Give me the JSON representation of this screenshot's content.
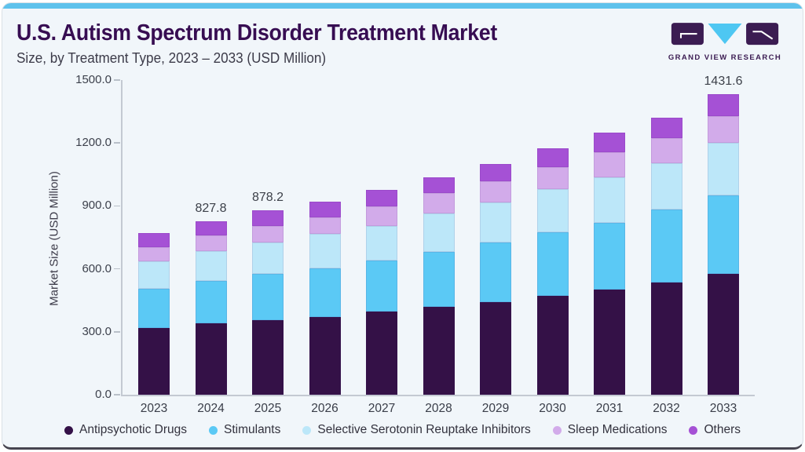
{
  "header": {
    "title": "U.S. Autism Spectrum Disorder Treatment Market",
    "subtitle": "Size, by Treatment Type, 2023 – 2033 (USD Million)",
    "logo_text": "GRAND VIEW RESEARCH"
  },
  "colors": {
    "card_background": "#f1f6fa",
    "top_accent_bar": "#5ec2ec",
    "title_text": "#370d52",
    "body_text": "#3c3b49",
    "axis_line": "#c3c9d2",
    "logo_purple": "#3b1c52",
    "logo_blue": "#4ec7f2"
  },
  "chart_data": {
    "type": "bar",
    "stacked": true,
    "title": "U.S. Autism Spectrum Disorder Treatment Market Size, by Treatment Type, 2023 - 2033 (USD Million)",
    "xlabel": "",
    "ylabel": "Market Size (USD Million)",
    "ylim": [
      0,
      1500
    ],
    "yticks": [
      0,
      300,
      600,
      900,
      1200,
      1500
    ],
    "ytick_labels": [
      "0.0",
      "300.0",
      "600.0",
      "900.0",
      "1200.0",
      "1500.0"
    ],
    "grid": false,
    "legend_position": "bottom",
    "categories": [
      "2023",
      "2024",
      "2025",
      "2026",
      "2027",
      "2028",
      "2029",
      "2030",
      "2031",
      "2032",
      "2033"
    ],
    "series": [
      {
        "name": "Antipsychotic Drugs",
        "color": "#341147",
        "values": [
          318,
          340,
          356,
          372,
          395,
          419,
          441,
          470,
          502,
          535,
          575
        ]
      },
      {
        "name": "Stimulants",
        "color": "#5bc9f5",
        "values": [
          186,
          203,
          219,
          231,
          243,
          261,
          283,
          303,
          317,
          347,
          374
        ]
      },
      {
        "name": "Selective Serotonin Reuptake Inhibitors",
        "color": "#bce7f9",
        "values": [
          133,
          143,
          152,
          162,
          166,
          183,
          191,
          206,
          216,
          222,
          250
        ]
      },
      {
        "name": "Sleep Medications",
        "color": "#d2abea",
        "values": [
          67,
          72,
          78,
          81,
          95,
          100,
          103,
          106,
          119,
          120,
          130.6
        ]
      },
      {
        "name": "Others",
        "color": "#a551d5",
        "values": [
          68,
          69.8,
          73.2,
          74,
          76,
          75,
          82,
          88,
          94,
          98,
          102
        ]
      }
    ],
    "totals": [
      772,
      827.8,
      878.2,
      920,
      975,
      1038,
      1100,
      1173,
      1248,
      1322,
      1431.6
    ],
    "annotations": [
      {
        "category": "2024",
        "label": "827.8"
      },
      {
        "category": "2025",
        "label": "878.2"
      },
      {
        "category": "2033",
        "label": "1431.6"
      }
    ]
  }
}
